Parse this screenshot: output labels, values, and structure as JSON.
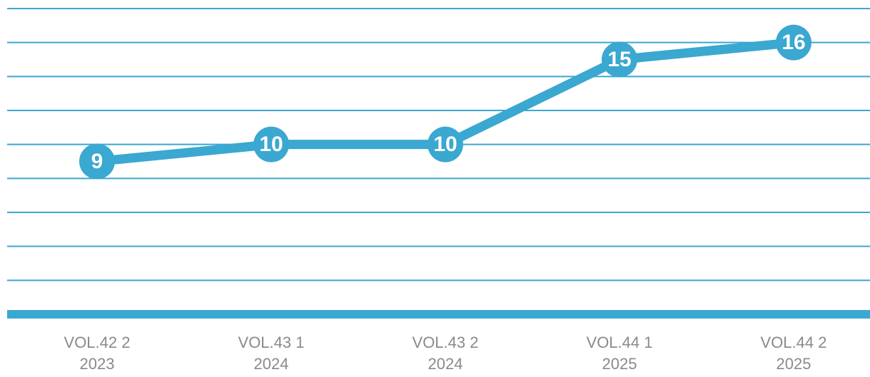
{
  "chart_data": {
    "type": "line",
    "categories": [
      "VOL.42 2\n2023",
      "VOL.43 1\n2024",
      "VOL.43 2\n2024",
      "VOL.44 1\n2025",
      "VOL.44 2\n2025"
    ],
    "values": [
      9,
      10,
      10,
      15,
      16
    ],
    "color": "#3aa8d0",
    "ylim": [
      0,
      18
    ],
    "yticks": [
      0,
      2,
      4,
      6,
      8,
      10,
      12,
      14,
      16,
      18
    ],
    "grid": true
  }
}
